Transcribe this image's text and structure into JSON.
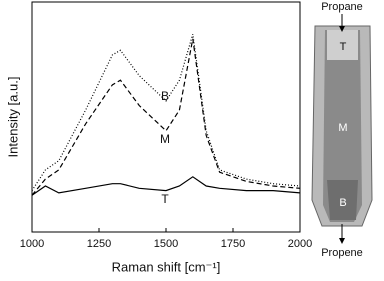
{
  "chart_data": {
    "type": "line",
    "xlabel": "Raman shift [cm⁻¹]",
    "ylabel": "Intensity [a.u.]",
    "x": [
      1000,
      1050,
      1100,
      1200,
      1300,
      1330,
      1400,
      1500,
      1550,
      1600,
      1650,
      1700,
      1800,
      1900,
      2000
    ],
    "series": [
      {
        "name": "B",
        "color": "#000000",
        "style": "dotted",
        "values": [
          18,
          27,
          31,
          53,
          77,
          79,
          68,
          57,
          66,
          86,
          44,
          27,
          23,
          21,
          20
        ]
      },
      {
        "name": "M",
        "color": "#000000",
        "style": "dashed",
        "values": [
          16,
          23,
          27,
          47,
          64,
          66,
          55,
          44,
          53,
          84,
          42,
          26,
          22,
          20,
          19
        ]
      },
      {
        "name": "T",
        "color": "#000000",
        "style": "solid",
        "values": [
          16,
          20,
          17,
          19,
          21,
          21,
          19,
          18,
          20,
          24,
          20,
          19,
          18,
          18,
          17
        ]
      }
    ],
    "xlim": [
      1000,
      2000
    ],
    "xticks": [
      1000,
      1250,
      1500,
      1750,
      2000
    ],
    "ylim": [
      0,
      100
    ]
  },
  "photo": {
    "top_label": "Propane",
    "bottom_label": "Propene",
    "zone_labels": [
      "T",
      "M",
      "B"
    ]
  }
}
